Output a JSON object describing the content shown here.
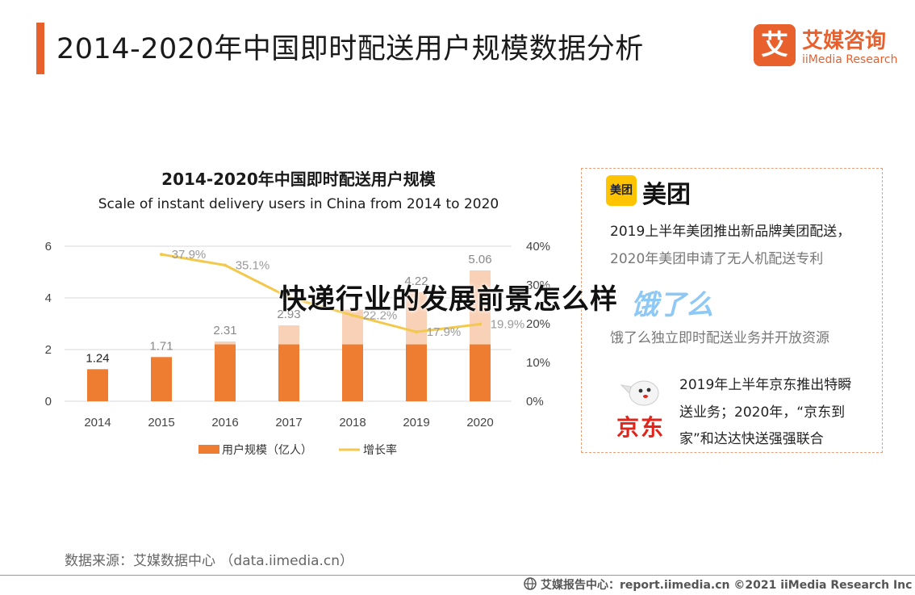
{
  "page": {
    "title": "2014-2020年中国即时配送用户规模数据分析",
    "overlay_title": "快递行业的发展前景怎么样",
    "source": "数据来源：艾媒数据中心 （data.iimedia.cn）",
    "footer": "艾媒报告中心：report.iimedia.cn   ©2021  iiMedia Research  Inc",
    "accent_color": "#e8602c"
  },
  "brand": {
    "mark": "艾",
    "name_cn": "艾媒咨询",
    "name_en": "iiMedia Research"
  },
  "chart_data": {
    "type": "bar",
    "title": "2014-2020年中国即时配送用户规模",
    "subtitle": "Scale of instant delivery users in China from 2014 to 2020",
    "categories": [
      "2014",
      "2015",
      "2016",
      "2017",
      "2018",
      "2019",
      "2020"
    ],
    "series": [
      {
        "name": "用户规模（亿人）",
        "type": "bar",
        "axis": "left",
        "color": "#ee7d31",
        "values": [
          1.24,
          1.71,
          2.31,
          2.93,
          3.54,
          4.22,
          5.06
        ],
        "labels": [
          "1.24",
          "1.71",
          "2.31",
          "2.93",
          "",
          "4.22",
          "5.06"
        ]
      },
      {
        "name": "增长率",
        "type": "line",
        "axis": "right",
        "color": "#f2c94c",
        "values": [
          null,
          37.9,
          35.1,
          26.8,
          22.2,
          17.9,
          19.9
        ],
        "labels": [
          "",
          "37.9%",
          "35.1%",
          "",
          "22.2%",
          "17.9%",
          "19.9%"
        ]
      }
    ],
    "yticks_left": [
      "0",
      "2",
      "4",
      "6"
    ],
    "ylim_left": [
      0,
      6
    ],
    "yticks_right": [
      "0%",
      "10%",
      "20%",
      "30%",
      "40%"
    ],
    "ylim_right": [
      0,
      40
    ],
    "legend_position": "bottom"
  },
  "panel": {
    "meituan": {
      "logo": "美团",
      "name": "美团",
      "line1": "2019上半年美团推出新品牌美团配送，",
      "line2": "2020年美团申请了无人机配送专利"
    },
    "eleme": {
      "logo": "饿了么",
      "line1": "饿了么独立即时配送业务并开放资源"
    },
    "jd": {
      "name": "京东",
      "line1": "2019年上半年京东推出特瞬",
      "line2": "送业务；2020年，“京东到",
      "line3": "家”和达达快送强强联合"
    }
  }
}
